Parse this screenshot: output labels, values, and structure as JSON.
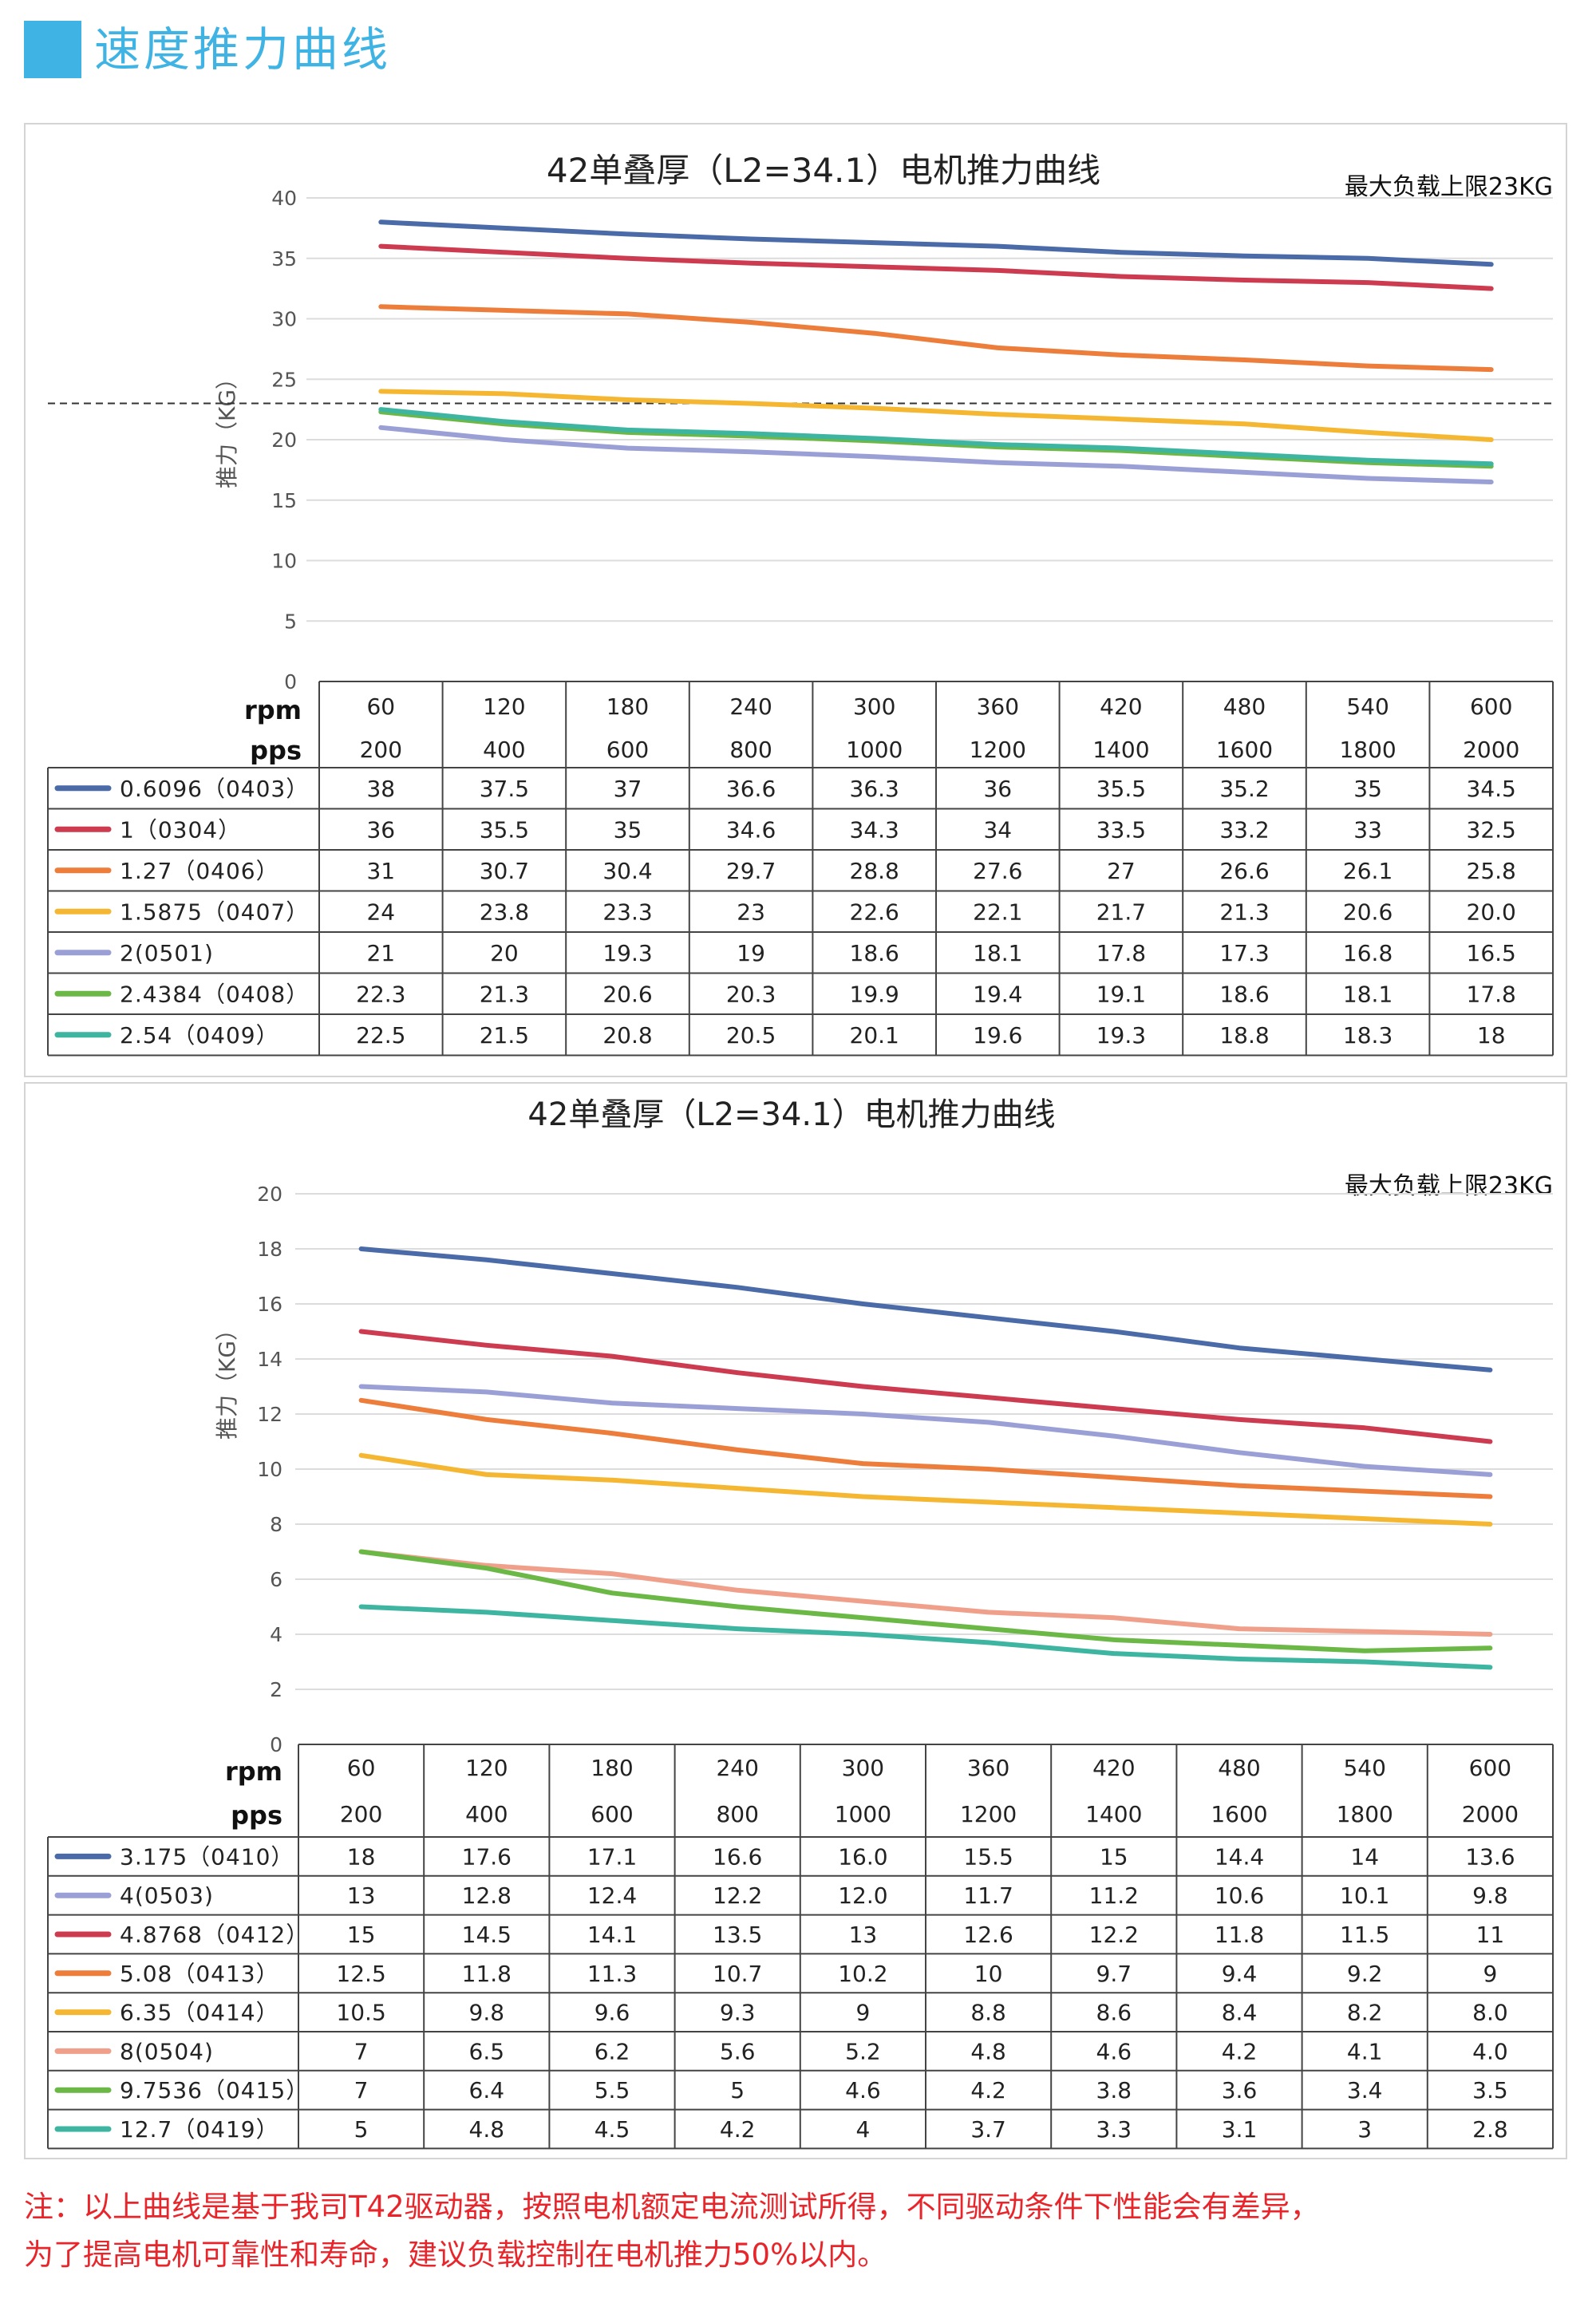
{
  "header": {
    "title": "速度推力曲线"
  },
  "chart_data": [
    {
      "type": "line",
      "title": "42单叠厚（L2=34.1）电机推力曲线",
      "annotation": "最大负载上限23KG",
      "limit_line": 23,
      "ylabel": "推力（KG）",
      "ylim": [
        0,
        40
      ],
      "yticks": [
        0,
        5,
        10,
        15,
        20,
        25,
        30,
        35,
        40
      ],
      "grid": true,
      "rpm_label": "rpm",
      "pps_label": "pps",
      "rpm": [
        "60",
        "120",
        "180",
        "240",
        "300",
        "360",
        "420",
        "480",
        "540",
        "600"
      ],
      "pps": [
        "200",
        "400",
        "600",
        "800",
        "1000",
        "1200",
        "1400",
        "1600",
        "1800",
        "2000"
      ],
      "series": [
        {
          "name": "0.6096（0403）",
          "color": "#4a6aa8",
          "values": [
            38,
            37.5,
            37,
            36.6,
            36.3,
            36,
            35.5,
            35.2,
            35,
            34.5
          ],
          "labels": [
            "38",
            "37.5",
            "37",
            "36.6",
            "36.3",
            "36",
            "35.5",
            "35.2",
            "35",
            "34.5"
          ]
        },
        {
          "name": "1（0304）",
          "color": "#cc3b4f",
          "values": [
            36,
            35.5,
            35,
            34.6,
            34.3,
            34,
            33.5,
            33.2,
            33,
            32.5
          ],
          "labels": [
            "36",
            "35.5",
            "35",
            "34.6",
            "34.3",
            "34",
            "33.5",
            "33.2",
            "33",
            "32.5"
          ]
        },
        {
          "name": "1.27（0406）",
          "color": "#ed7d3a",
          "values": [
            31,
            30.7,
            30.4,
            29.7,
            28.8,
            27.6,
            27,
            26.6,
            26.1,
            25.8
          ],
          "labels": [
            "31",
            "30.7",
            "30.4",
            "29.7",
            "28.8",
            "27.6",
            "27",
            "26.6",
            "26.1",
            "25.8"
          ]
        },
        {
          "name": "1.5875（0407）",
          "color": "#f5b731",
          "values": [
            24,
            23.8,
            23.3,
            23,
            22.6,
            22.1,
            21.7,
            21.3,
            20.6,
            20.0
          ],
          "labels": [
            "24",
            "23.8",
            "23.3",
            "23",
            "22.6",
            "22.1",
            "21.7",
            "21.3",
            "20.6",
            "20.0"
          ]
        },
        {
          "name": "2(0501)",
          "color": "#9aa0d6",
          "values": [
            21,
            20,
            19.3,
            19,
            18.6,
            18.1,
            17.8,
            17.3,
            16.8,
            16.5
          ],
          "labels": [
            "21",
            "20",
            "19.3",
            "19",
            "18.6",
            "18.1",
            "17.8",
            "17.3",
            "16.8",
            "16.5"
          ]
        },
        {
          "name": "2.4384（0408）",
          "color": "#6cb846",
          "values": [
            22.3,
            21.3,
            20.6,
            20.3,
            19.9,
            19.4,
            19.1,
            18.6,
            18.1,
            17.8
          ],
          "labels": [
            "22.3",
            "21.3",
            "20.6",
            "20.3",
            "19.9",
            "19.4",
            "19.1",
            "18.6",
            "18.1",
            "17.8"
          ]
        },
        {
          "name": "2.54（0409）",
          "color": "#3eb5a0",
          "values": [
            22.5,
            21.5,
            20.8,
            20.5,
            20.1,
            19.6,
            19.3,
            18.8,
            18.3,
            18
          ],
          "labels": [
            "22.5",
            "21.5",
            "20.8",
            "20.5",
            "20.1",
            "19.6",
            "19.3",
            "18.8",
            "18.3",
            "18"
          ]
        }
      ]
    },
    {
      "type": "line",
      "title": "42单叠厚（L2=34.1）电机推力曲线",
      "annotation": "最大负载上限23KG",
      "ylabel": "推力（KG）",
      "ylim": [
        0,
        20
      ],
      "yticks": [
        0,
        2,
        4,
        6,
        8,
        10,
        12,
        14,
        16,
        18,
        20
      ],
      "grid": true,
      "rpm_label": "rpm",
      "pps_label": "pps",
      "rpm": [
        "60",
        "120",
        "180",
        "240",
        "300",
        "360",
        "420",
        "480",
        "540",
        "600"
      ],
      "pps": [
        "200",
        "400",
        "600",
        "800",
        "1000",
        "1200",
        "1400",
        "1600",
        "1800",
        "2000"
      ],
      "series": [
        {
          "name": "3.175（0410）",
          "color": "#4a6aa8",
          "values": [
            18,
            17.6,
            17.1,
            16.6,
            16.0,
            15.5,
            15,
            14.4,
            14,
            13.6
          ],
          "labels": [
            "18",
            "17.6",
            "17.1",
            "16.6",
            "16.0",
            "15.5",
            "15",
            "14.4",
            "14",
            "13.6"
          ]
        },
        {
          "name": "4(0503)",
          "color": "#9aa0d6",
          "values": [
            13,
            12.8,
            12.4,
            12.2,
            12.0,
            11.7,
            11.2,
            10.6,
            10.1,
            9.8
          ],
          "labels": [
            "13",
            "12.8",
            "12.4",
            "12.2",
            "12.0",
            "11.7",
            "11.2",
            "10.6",
            "10.1",
            "9.8"
          ]
        },
        {
          "name": "4.8768（0412）",
          "color": "#cc3b4f",
          "values": [
            15,
            14.5,
            14.1,
            13.5,
            13,
            12.6,
            12.2,
            11.8,
            11.5,
            11
          ],
          "labels": [
            "15",
            "14.5",
            "14.1",
            "13.5",
            "13",
            "12.6",
            "12.2",
            "11.8",
            "11.5",
            "11"
          ]
        },
        {
          "name": "5.08（0413）",
          "color": "#ed7d3a",
          "values": [
            12.5,
            11.8,
            11.3,
            10.7,
            10.2,
            10,
            9.7,
            9.4,
            9.2,
            9
          ],
          "labels": [
            "12.5",
            "11.8",
            "11.3",
            "10.7",
            "10.2",
            "10",
            "9.7",
            "9.4",
            "9.2",
            "9"
          ]
        },
        {
          "name": "6.35（0414）",
          "color": "#f5b731",
          "values": [
            10.5,
            9.8,
            9.6,
            9.3,
            9,
            8.8,
            8.6,
            8.4,
            8.2,
            8.0
          ],
          "labels": [
            "10.5",
            "9.8",
            "9.6",
            "9.3",
            "9",
            "8.8",
            "8.6",
            "8.4",
            "8.2",
            "8.0"
          ]
        },
        {
          "name": "8(0504)",
          "color": "#f0a08a",
          "values": [
            7,
            6.5,
            6.2,
            5.6,
            5.2,
            4.8,
            4.6,
            4.2,
            4.1,
            4.0
          ],
          "labels": [
            "7",
            "6.5",
            "6.2",
            "5.6",
            "5.2",
            "4.8",
            "4.6",
            "4.2",
            "4.1",
            "4.0"
          ]
        },
        {
          "name": "9.7536（0415）",
          "color": "#6cb846",
          "values": [
            7,
            6.4,
            5.5,
            5,
            4.6,
            4.2,
            3.8,
            3.6,
            3.4,
            3.5
          ],
          "labels": [
            "7",
            "6.4",
            "5.5",
            "5",
            "4.6",
            "4.2",
            "3.8",
            "3.6",
            "3.4",
            "3.5"
          ]
        },
        {
          "name": "12.7（0419）",
          "color": "#3eb5a0",
          "values": [
            5,
            4.8,
            4.5,
            4.2,
            4,
            3.7,
            3.3,
            3.1,
            3,
            2.8
          ],
          "labels": [
            "5",
            "4.8",
            "4.5",
            "4.2",
            "4",
            "3.7",
            "3.3",
            "3.1",
            "3",
            "2.8"
          ]
        }
      ]
    }
  ],
  "note": {
    "line1": "注：以上曲线是基于我司T42驱动器，按照电机额定电流测试所得，不同驱动条件下性能会有差异，",
    "line2": "为了提高电机可靠性和寿命，建议负载控制在电机推力50%以内。"
  }
}
